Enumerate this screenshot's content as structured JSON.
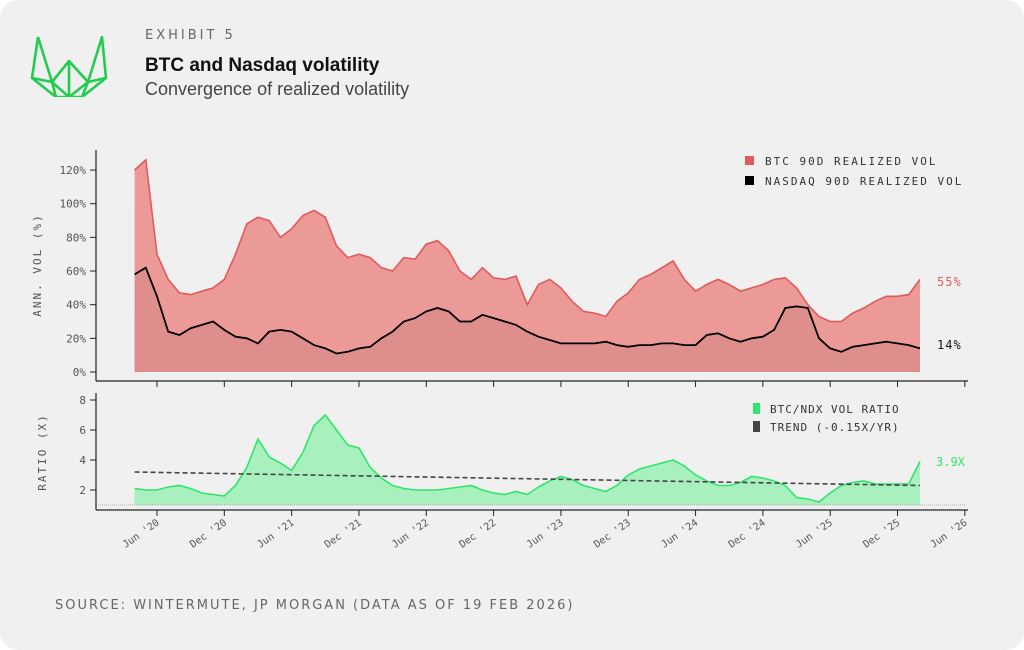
{
  "header": {
    "exhibit": "EXHIBIT 5",
    "title": "BTC and Nasdaq volatility",
    "subtitle": "Convergence of realized volatility"
  },
  "footer": {
    "source": "SOURCE: WINTERMUTE, JP MORGAN (DATA AS OF 19 FEB 2026)"
  },
  "colors": {
    "btc_line": "#e05a5a",
    "btc_fill": "#ec9a98",
    "ndx_line": "#000000",
    "ndx_fill": "#de8e8c",
    "ratio_line": "#2ee66a",
    "ratio_fill": "#a9f0bf",
    "trend": "#444444",
    "logo": "#22cc4e"
  },
  "chart_data": [
    {
      "type": "area",
      "ylabel": "ANN. VOL (%)",
      "ylim": [
        0,
        130
      ],
      "yticks": [
        "0%",
        "20%",
        "40%",
        "60%",
        "80%",
        "100%",
        "120%"
      ],
      "ytick_values": [
        0,
        20,
        40,
        60,
        80,
        100,
        120
      ],
      "legend": {
        "placement": "top-right",
        "entries": [
          "BTC 90D REALIZED VOL",
          "NASDAQ 90D REALIZED VOL"
        ]
      },
      "end_labels": {
        "btc": "55%",
        "ndx": "14%"
      },
      "x": [
        "2020-04",
        "2020-05",
        "2020-06",
        "2020-07",
        "2020-08",
        "2020-09",
        "2020-10",
        "2020-11",
        "2020-12",
        "2021-01",
        "2021-02",
        "2021-03",
        "2021-04",
        "2021-05",
        "2021-06",
        "2021-07",
        "2021-08",
        "2021-09",
        "2021-10",
        "2021-11",
        "2021-12",
        "2022-01",
        "2022-02",
        "2022-03",
        "2022-04",
        "2022-05",
        "2022-06",
        "2022-07",
        "2022-08",
        "2022-09",
        "2022-10",
        "2022-11",
        "2022-12",
        "2023-01",
        "2023-02",
        "2023-03",
        "2023-04",
        "2023-05",
        "2023-06",
        "2023-07",
        "2023-08",
        "2023-09",
        "2023-10",
        "2023-11",
        "2023-12",
        "2024-01",
        "2024-02",
        "2024-03",
        "2024-04",
        "2024-05",
        "2024-06",
        "2024-07",
        "2024-08",
        "2024-09",
        "2024-10",
        "2024-11",
        "2024-12",
        "2025-01",
        "2025-02",
        "2025-03",
        "2025-04",
        "2025-05",
        "2025-06",
        "2025-07",
        "2025-08",
        "2025-09",
        "2025-10",
        "2025-11",
        "2025-12",
        "2026-01",
        "2026-02"
      ],
      "series": [
        {
          "name": "BTC 90D REALIZED VOL",
          "values": [
            120,
            126,
            70,
            55,
            47,
            46,
            48,
            50,
            55,
            70,
            88,
            92,
            90,
            80,
            85,
            93,
            96,
            92,
            75,
            68,
            70,
            68,
            62,
            60,
            68,
            67,
            76,
            78,
            72,
            60,
            55,
            62,
            56,
            55,
            57,
            40,
            52,
            55,
            50,
            42,
            36,
            35,
            33,
            42,
            47,
            55,
            58,
            62,
            66,
            55,
            48,
            52,
            55,
            52,
            48,
            50,
            52,
            55,
            56,
            50,
            40,
            33,
            30,
            30,
            35,
            38,
            42,
            45,
            45,
            46,
            55
          ]
        },
        {
          "name": "NASDAQ 90D REALIZED VOL",
          "values": [
            58,
            62,
            45,
            24,
            22,
            26,
            28,
            30,
            25,
            21,
            20,
            17,
            24,
            25,
            24,
            20,
            16,
            14,
            11,
            12,
            14,
            15,
            20,
            24,
            30,
            32,
            36,
            38,
            36,
            30,
            30,
            34,
            32,
            30,
            28,
            24,
            21,
            19,
            17,
            17,
            17,
            17,
            18,
            16,
            15,
            16,
            16,
            17,
            17,
            16,
            16,
            22,
            23,
            20,
            18,
            20,
            21,
            25,
            38,
            39,
            38,
            20,
            14,
            12,
            15,
            16,
            17,
            18,
            17,
            16,
            14
          ]
        }
      ]
    },
    {
      "type": "area",
      "ylabel": "RATIO (X)",
      "ylim": [
        1,
        8.3
      ],
      "yticks": [
        "2",
        "4",
        "6",
        "8"
      ],
      "ytick_values": [
        2,
        4,
        6,
        8
      ],
      "legend": {
        "placement": "top-right",
        "entries": [
          "BTC/NDX VOL RATIO",
          "TREND (-0.15X/YR)"
        ]
      },
      "end_label": "3.9X",
      "xticks": [
        "Jun '20",
        "Dec '20",
        "Jun '21",
        "Dec '21",
        "Jun '22",
        "Dec '22",
        "Jun '23",
        "Dec '23",
        "Jun '24",
        "Dec '24",
        "Jun '25",
        "Dec '25",
        "Jun '26"
      ],
      "xtick_dates": [
        "2020-06",
        "2020-12",
        "2021-06",
        "2021-12",
        "2022-06",
        "2022-12",
        "2023-06",
        "2023-12",
        "2024-06",
        "2024-12",
        "2025-06",
        "2025-12",
        "2026-06"
      ],
      "series": [
        {
          "name": "BTC/NDX VOL RATIO",
          "values": [
            2.1,
            2.0,
            2.0,
            2.2,
            2.3,
            2.1,
            1.8,
            1.7,
            1.6,
            2.3,
            3.5,
            5.4,
            4.2,
            3.8,
            3.3,
            4.5,
            6.3,
            7.0,
            6.0,
            5.0,
            4.8,
            3.5,
            2.8,
            2.3,
            2.1,
            2.0,
            2.0,
            2.0,
            2.1,
            2.2,
            2.3,
            2.0,
            1.8,
            1.7,
            1.9,
            1.7,
            2.2,
            2.6,
            2.9,
            2.7,
            2.3,
            2.1,
            1.9,
            2.3,
            3.0,
            3.4,
            3.6,
            3.8,
            4.0,
            3.6,
            3.0,
            2.6,
            2.3,
            2.3,
            2.5,
            2.9,
            2.8,
            2.6,
            2.3,
            1.5,
            1.4,
            1.2,
            1.8,
            2.3,
            2.5,
            2.6,
            2.4,
            2.4,
            2.4,
            2.4,
            3.9
          ]
        },
        {
          "name": "TREND (-0.15X/YR)",
          "start": 3.2,
          "end": 2.3
        }
      ]
    }
  ]
}
